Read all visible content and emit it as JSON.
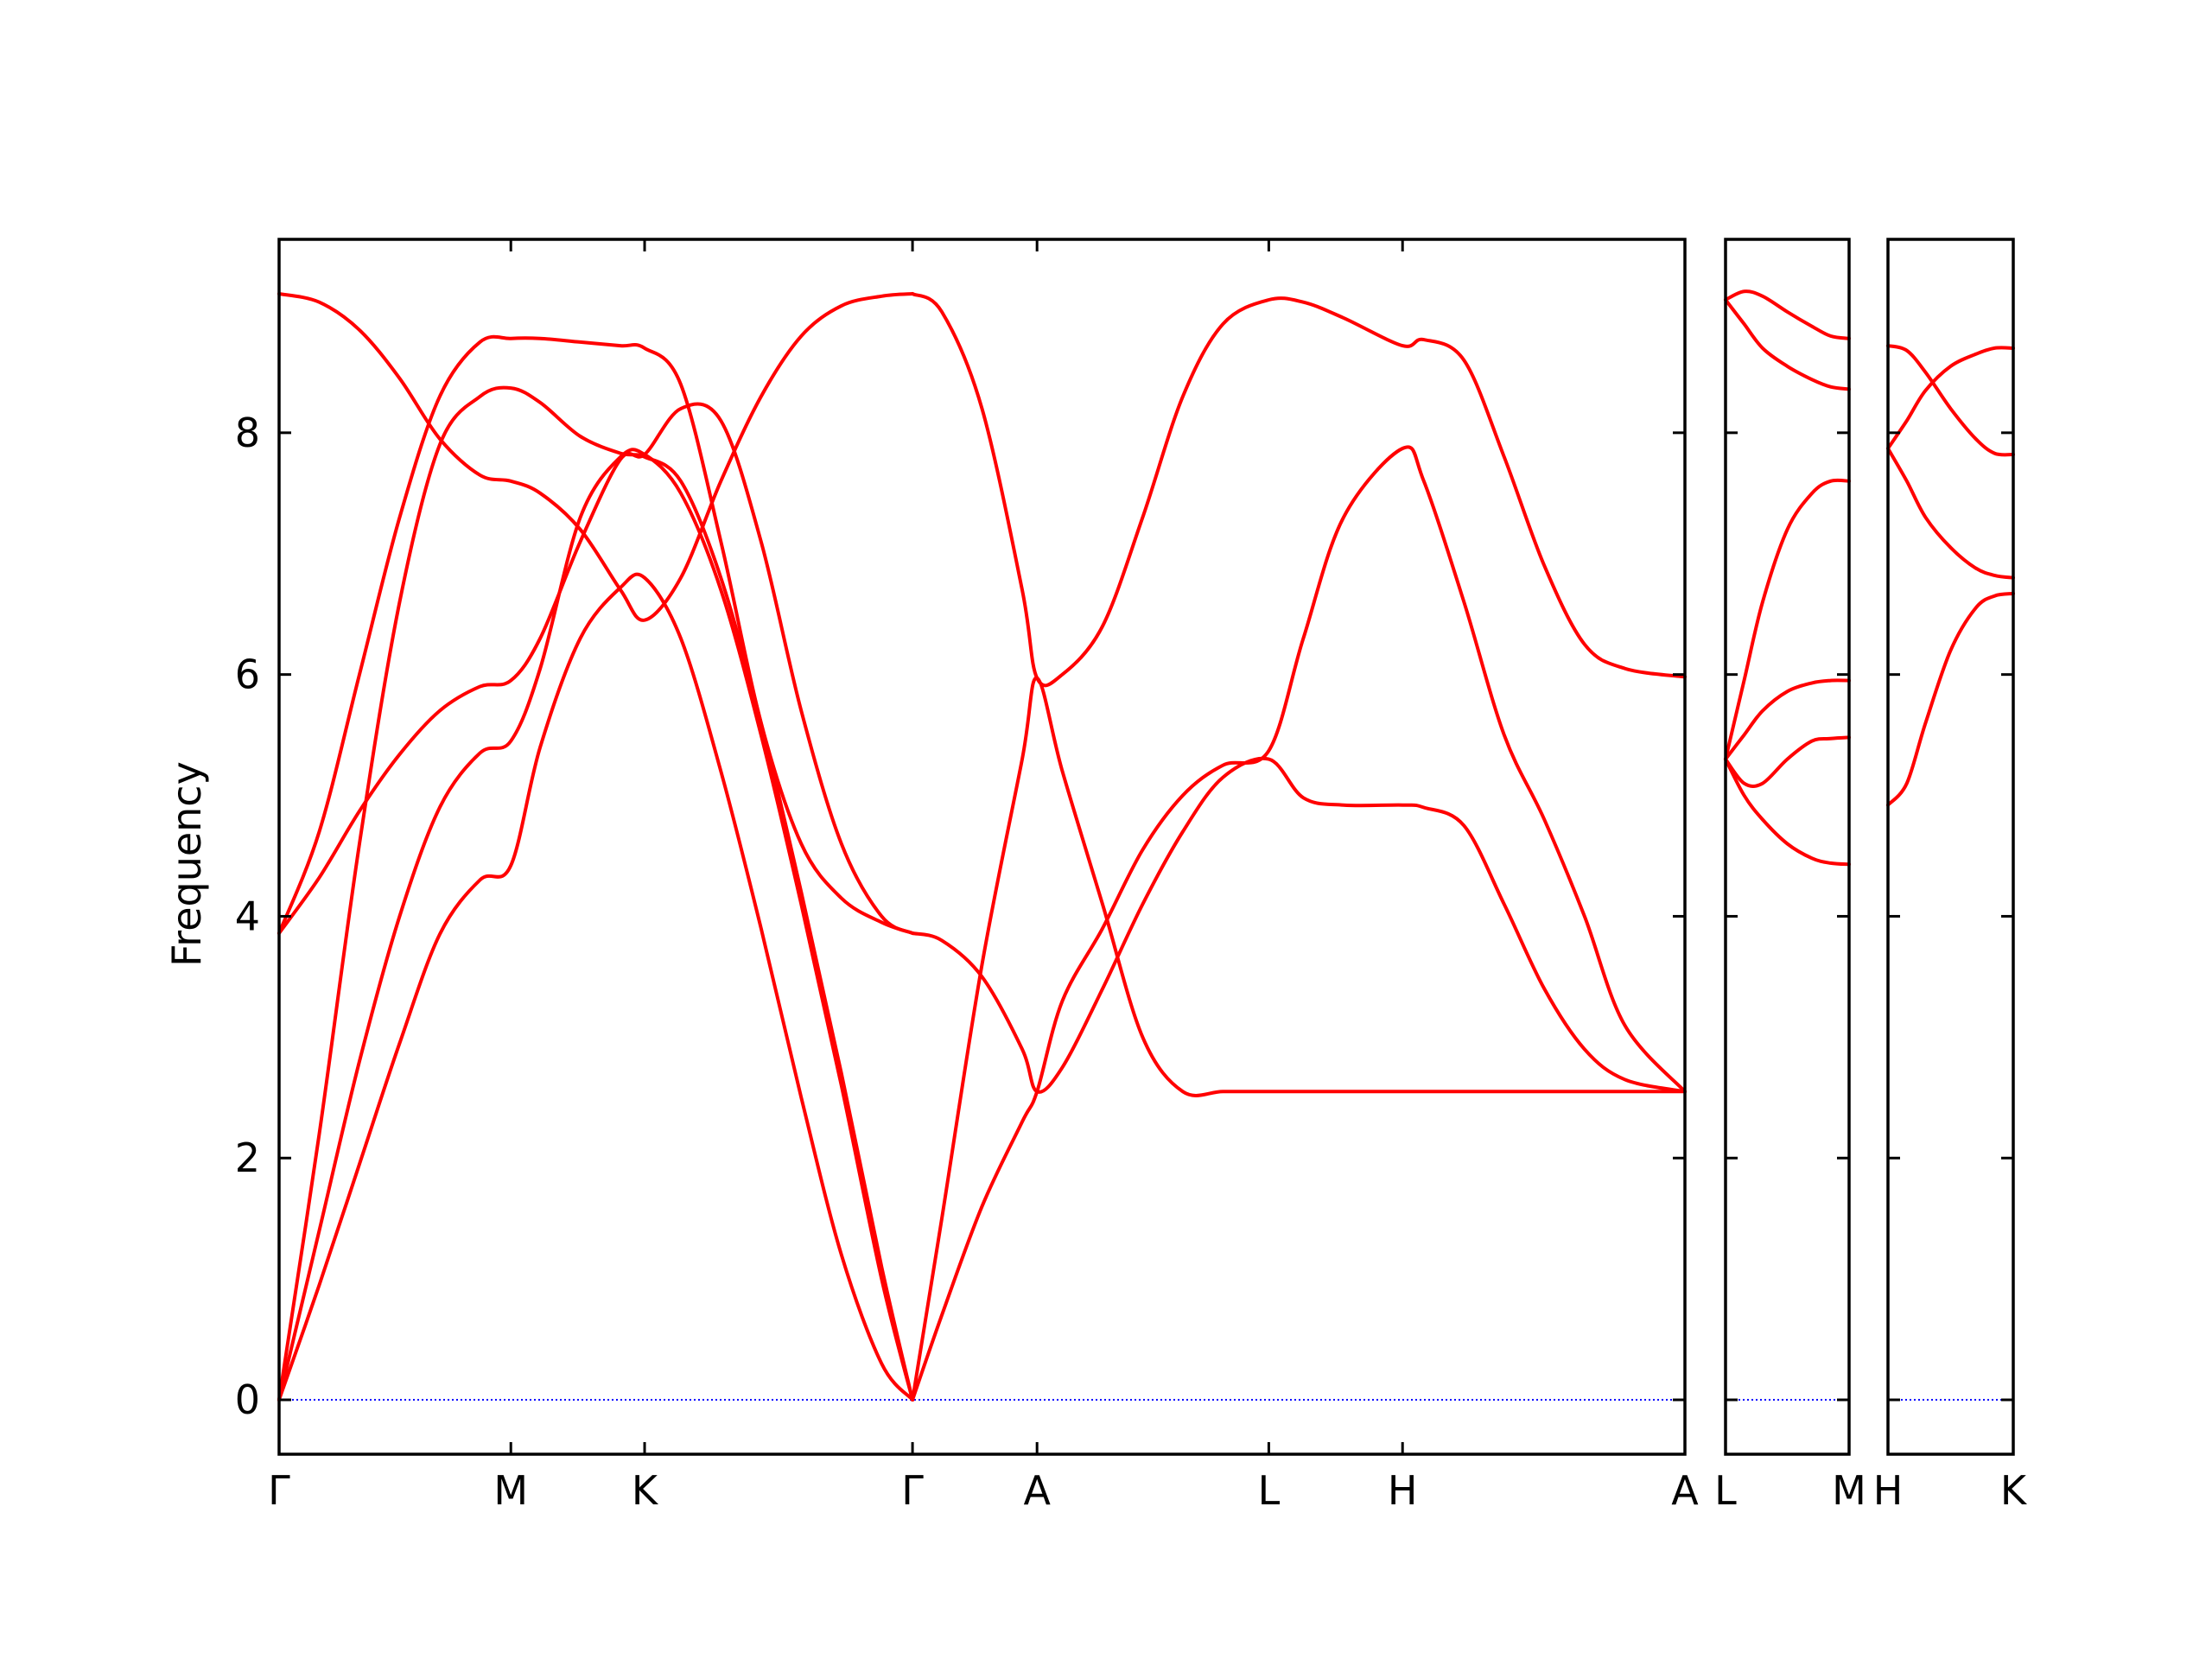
{
  "chart_data": {
    "type": "line",
    "title": "",
    "xlabel": "",
    "ylabel": "Frequency",
    "ylim": [
      -0.45,
      9.6
    ],
    "yticks": [
      0,
      2,
      4,
      6,
      8
    ],
    "grid": false,
    "legend": "none",
    "colors": {
      "bands": "#ff0000",
      "zero_line": "#0000ff",
      "axes": "#000000"
    },
    "panels": [
      {
        "x_range": [
          0,
          3.5
        ],
        "tick_positions": [
          0,
          0.577,
          0.91,
          1.577,
          1.887,
          2.464,
          2.797,
          3.5
        ],
        "tick_labels": [
          "Γ",
          "M",
          "K",
          "Γ",
          "A",
          "L",
          "H",
          "A"
        ],
        "series": [
          {
            "name": "",
            "x": [
              0,
              0.1,
              0.2,
              0.3,
              0.4,
              0.5,
              0.577,
              0.65,
              0.75,
              0.85,
              0.91,
              1.0,
              1.1,
              1.2,
              1.3,
              1.4,
              1.5,
              1.577
            ],
            "y": [
              0,
              0.95,
              1.95,
              2.95,
              3.85,
              4.3,
              4.42,
              5.4,
              6.3,
              6.72,
              6.8,
              6.3,
              5.2,
              3.9,
              2.5,
              1.2,
              0.3,
              0
            ]
          },
          {
            "name": "",
            "x": [
              0,
              0.1,
              0.2,
              0.3,
              0.4,
              0.5,
              0.577,
              0.65,
              0.75,
              0.85,
              0.91,
              1.0,
              1.1,
              1.2,
              1.3,
              1.4,
              1.5,
              1.577
            ],
            "y": [
              0,
              1.4,
              2.8,
              4.0,
              4.9,
              5.35,
              5.45,
              6.05,
              7.3,
              7.8,
              7.82,
              7.5,
              6.7,
              5.5,
              4.1,
              2.6,
              1.0,
              0
            ]
          },
          {
            "name": "",
            "x": [
              0,
              0.1,
              0.2,
              0.3,
              0.4,
              0.5,
              0.577,
              0.65,
              0.75,
              0.85,
              0.91,
              1.0,
              1.1,
              1.2,
              1.3,
              1.4,
              1.5,
              1.577
            ],
            "y": [
              0,
              2.2,
              4.6,
              6.6,
              7.9,
              8.3,
              8.37,
              8.25,
              7.97,
              7.83,
              7.8,
              7.6,
              6.8,
              5.6,
              4.2,
              2.7,
              1.1,
              0
            ]
          },
          {
            "name": "",
            "x": [
              0,
              0.1,
              0.2,
              0.3,
              0.4,
              0.5,
              0.577,
              0.65,
              0.75,
              0.85,
              0.91,
              1.0,
              1.1,
              1.2,
              1.3,
              1.4,
              1.5,
              1.577
            ],
            "y": [
              3.86,
              4.32,
              4.87,
              5.34,
              5.7,
              5.9,
              5.95,
              6.3,
              7.1,
              7.78,
              7.82,
              8.2,
              8.1,
              7.1,
              5.7,
              4.6,
              4.0,
              3.86
            ]
          },
          {
            "name": "",
            "x": [
              0,
              0.1,
              0.2,
              0.3,
              0.4,
              0.5,
              0.577,
              0.65,
              0.75,
              0.85,
              0.91,
              1.0,
              1.1,
              1.2,
              1.3,
              1.4,
              1.5,
              1.577
            ],
            "y": [
              3.86,
              4.7,
              6.0,
              7.3,
              8.3,
              8.75,
              8.78,
              8.78,
              8.75,
              8.72,
              8.7,
              8.4,
              7.1,
              5.6,
              4.6,
              4.15,
              3.95,
              3.86
            ]
          },
          {
            "name": "",
            "x": [
              0,
              0.1,
              0.2,
              0.3,
              0.4,
              0.5,
              0.577,
              0.65,
              0.75,
              0.85,
              0.91,
              1.0,
              1.1,
              1.2,
              1.3,
              1.4,
              1.5,
              1.577
            ],
            "y": [
              9.15,
              9.08,
              8.85,
              8.45,
              7.95,
              7.65,
              7.6,
              7.5,
              7.2,
              6.7,
              6.45,
              6.8,
              7.6,
              8.3,
              8.8,
              9.05,
              9.13,
              9.15
            ]
          },
          {
            "name": "",
            "x": [
              1.577,
              1.65,
              1.75,
              1.85,
              1.887,
              1.95,
              2.05,
              2.15,
              2.25,
              2.35,
              2.464,
              2.55,
              2.65,
              2.797,
              2.85,
              2.95,
              3.05,
              3.15,
              3.25,
              3.35,
              3.5
            ],
            "y": [
              9.15,
              9.0,
              8.2,
              6.7,
              5.97,
              6.0,
              6.4,
              7.3,
              8.3,
              8.9,
              9.1,
              9.08,
              8.95,
              8.72,
              8.77,
              8.6,
              7.8,
              6.9,
              6.25,
              6.05,
              5.98
            ]
          },
          {
            "name": "",
            "x": [
              1.577,
              1.65,
              1.75,
              1.85,
              1.887,
              1.95,
              2.05,
              2.15,
              2.25,
              2.35,
              2.464,
              2.55,
              2.65,
              2.797,
              2.85,
              2.95,
              3.05,
              3.15,
              3.25,
              3.35,
              3.5
            ],
            "y": [
              0,
              1.5,
              3.6,
              5.3,
              5.97,
              5.2,
              4.1,
              3.0,
              2.55,
              2.55,
              2.55,
              2.55,
              2.55,
              2.55,
              2.55,
              2.55,
              2.55,
              2.55,
              2.55,
              2.55,
              2.55
            ]
          },
          {
            "name": "",
            "x": [
              1.577,
              1.65,
              1.75,
              1.85,
              1.887,
              1.95,
              2.05,
              2.15,
              2.25,
              2.35,
              2.464,
              2.55,
              2.65,
              2.797,
              2.85,
              2.95,
              3.05,
              3.15,
              3.25,
              3.35,
              3.5
            ],
            "y": [
              0,
              0.7,
              1.6,
              2.3,
              2.55,
              3.3,
              3.9,
              4.55,
              5.0,
              5.25,
              5.37,
              6.3,
              7.3,
              7.87,
              7.6,
              6.6,
              5.5,
              4.8,
              4.0,
              3.1,
              2.55
            ]
          },
          {
            "name": "",
            "x": [
              1.577,
              1.65,
              1.75,
              1.85,
              1.887,
              1.95,
              2.05,
              2.15,
              2.25,
              2.35,
              2.464,
              2.55,
              2.65,
              2.797,
              2.85,
              2.95,
              3.05,
              3.15,
              3.25,
              3.35,
              3.5
            ],
            "y": [
              3.86,
              3.8,
              3.5,
              2.9,
              2.55,
              2.75,
              3.4,
              4.1,
              4.7,
              5.15,
              5.3,
              4.98,
              4.92,
              4.92,
              4.9,
              4.75,
              4.1,
              3.4,
              2.9,
              2.65,
              2.55
            ]
          }
        ]
      },
      {
        "x_range": [
          0,
          1
        ],
        "tick_positions": [
          0,
          1
        ],
        "tick_labels": [
          "L",
          "M"
        ],
        "series": [
          {
            "name": "",
            "x": [
              0,
              0.15,
              0.3,
              0.5,
              0.7,
              0.85,
              1.0
            ],
            "y": [
              9.1,
              9.17,
              9.13,
              9.0,
              8.88,
              8.8,
              8.78
            ]
          },
          {
            "name": "",
            "x": [
              0,
              0.15,
              0.3,
              0.5,
              0.7,
              0.85,
              1.0
            ],
            "y": [
              9.1,
              8.9,
              8.7,
              8.55,
              8.44,
              8.38,
              8.36
            ]
          },
          {
            "name": "",
            "x": [
              0,
              0.15,
              0.3,
              0.5,
              0.7,
              0.85,
              1.0
            ],
            "y": [
              5.3,
              5.1,
              5.1,
              5.3,
              5.45,
              5.47,
              5.48
            ]
          },
          {
            "name": "",
            "x": [
              0,
              0.15,
              0.3,
              0.5,
              0.7,
              0.85,
              1.0
            ],
            "y": [
              5.3,
              5.5,
              5.7,
              5.86,
              5.93,
              5.95,
              5.95
            ]
          },
          {
            "name": "",
            "x": [
              0,
              0.15,
              0.3,
              0.5,
              0.7,
              0.85,
              1.0
            ],
            "y": [
              5.3,
              5.95,
              6.6,
              7.2,
              7.5,
              7.6,
              7.6
            ]
          },
          {
            "name": "",
            "x": [
              0,
              0.15,
              0.3,
              0.5,
              0.7,
              0.85,
              1.0
            ],
            "y": [
              5.3,
              5.0,
              4.8,
              4.6,
              4.48,
              4.44,
              4.43
            ]
          }
        ]
      },
      {
        "x_range": [
          0,
          1
        ],
        "tick_positions": [
          0,
          1
        ],
        "tick_labels": [
          "H",
          "K"
        ],
        "series": [
          {
            "name": "",
            "x": [
              0,
              0.15,
              0.3,
              0.5,
              0.7,
              0.85,
              1.0
            ],
            "y": [
              8.72,
              8.68,
              8.5,
              8.2,
              7.95,
              7.83,
              7.82
            ]
          },
          {
            "name": "",
            "x": [
              0,
              0.15,
              0.3,
              0.5,
              0.7,
              0.85,
              1.0
            ],
            "y": [
              7.87,
              8.1,
              8.35,
              8.55,
              8.65,
              8.7,
              8.7
            ]
          },
          {
            "name": "",
            "x": [
              0,
              0.15,
              0.3,
              0.5,
              0.7,
              0.85,
              1.0
            ],
            "y": [
              7.87,
              7.6,
              7.3,
              7.05,
              6.88,
              6.82,
              6.8
            ]
          },
          {
            "name": "",
            "x": [
              0,
              0.15,
              0.3,
              0.5,
              0.7,
              0.85,
              1.0
            ],
            "y": [
              4.92,
              5.1,
              5.6,
              6.2,
              6.55,
              6.65,
              6.67
            ]
          }
        ]
      }
    ]
  }
}
